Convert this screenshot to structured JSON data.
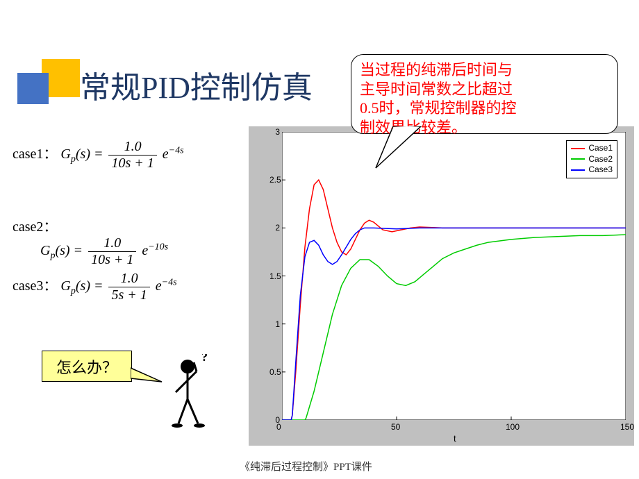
{
  "title": "常规PID控制仿真",
  "callout": {
    "line1": "当过程的纯滞后时间与",
    "line2": "主导时间常数之比超过",
    "line3": "0.5时，常规控制器的控",
    "line4": "制效果比较差。",
    "border_color": "#000000",
    "text_color": "#ff0000",
    "bg_color": "#ffffff"
  },
  "cases": {
    "case1": {
      "label": "case1：",
      "gp": "G",
      "sub": "p",
      "arg": "(s) =",
      "num": "1.0",
      "den": "10s + 1",
      "exp": "e",
      "exppow": "−4s"
    },
    "case2": {
      "label": "case2：",
      "gp": "G",
      "sub": "p",
      "arg": "(s) =",
      "num": "1.0",
      "den": "10s + 1",
      "exp": "e",
      "exppow": "−10s"
    },
    "case3": {
      "label": "case3：",
      "gp": "G",
      "sub": "p",
      "arg": "(s) =",
      "num": "1.0",
      "den": "5s + 1",
      "exp": "e",
      "exppow": "−4s"
    }
  },
  "question": "怎么办？",
  "chart": {
    "type": "line",
    "bg": "#c0c0c0",
    "plot_bg": "#ffffff",
    "xlabel": "t",
    "xlim": [
      0,
      150
    ],
    "ylim": [
      0,
      3
    ],
    "xticks": [
      0,
      50,
      100,
      150
    ],
    "yticks": [
      0,
      0.5,
      1,
      1.5,
      2,
      2.5,
      3
    ],
    "legend": [
      {
        "label": "Case1",
        "color": "#ff0000"
      },
      {
        "label": "Case2",
        "color": "#00cc00"
      },
      {
        "label": "Case3",
        "color": "#0000ff"
      }
    ],
    "series": {
      "case1": {
        "color": "#ff0000",
        "line_width": 1.5,
        "data": [
          [
            0,
            0
          ],
          [
            4,
            0
          ],
          [
            4.5,
            0.05
          ],
          [
            6,
            0.5
          ],
          [
            8,
            1.2
          ],
          [
            10,
            1.8
          ],
          [
            12,
            2.2
          ],
          [
            14,
            2.45
          ],
          [
            16,
            2.5
          ],
          [
            18,
            2.4
          ],
          [
            20,
            2.2
          ],
          [
            22,
            2.0
          ],
          [
            24,
            1.85
          ],
          [
            26,
            1.75
          ],
          [
            28,
            1.72
          ],
          [
            30,
            1.78
          ],
          [
            32,
            1.88
          ],
          [
            34,
            1.98
          ],
          [
            36,
            2.05
          ],
          [
            38,
            2.08
          ],
          [
            40,
            2.06
          ],
          [
            42,
            2.02
          ],
          [
            44,
            1.98
          ],
          [
            48,
            1.96
          ],
          [
            52,
            1.98
          ],
          [
            56,
            2.0
          ],
          [
            60,
            2.01
          ],
          [
            70,
            2.0
          ],
          [
            80,
            2.0
          ],
          [
            100,
            2.0
          ],
          [
            150,
            2.0
          ]
        ]
      },
      "case2": {
        "color": "#00cc00",
        "line_width": 1.5,
        "data": [
          [
            0,
            0
          ],
          [
            10,
            0
          ],
          [
            10.5,
            0.02
          ],
          [
            14,
            0.3
          ],
          [
            18,
            0.7
          ],
          [
            22,
            1.1
          ],
          [
            26,
            1.4
          ],
          [
            30,
            1.58
          ],
          [
            34,
            1.67
          ],
          [
            38,
            1.67
          ],
          [
            42,
            1.6
          ],
          [
            46,
            1.5
          ],
          [
            50,
            1.42
          ],
          [
            54,
            1.4
          ],
          [
            58,
            1.44
          ],
          [
            62,
            1.52
          ],
          [
            66,
            1.6
          ],
          [
            70,
            1.68
          ],
          [
            75,
            1.74
          ],
          [
            80,
            1.78
          ],
          [
            85,
            1.82
          ],
          [
            90,
            1.85
          ],
          [
            100,
            1.88
          ],
          [
            110,
            1.9
          ],
          [
            120,
            1.91
          ],
          [
            130,
            1.92
          ],
          [
            140,
            1.92
          ],
          [
            150,
            1.93
          ]
        ]
      },
      "case3": {
        "color": "#0000ff",
        "line_width": 1.5,
        "data": [
          [
            0,
            0
          ],
          [
            4,
            0
          ],
          [
            4.5,
            0.05
          ],
          [
            6,
            0.6
          ],
          [
            8,
            1.3
          ],
          [
            10,
            1.7
          ],
          [
            12,
            1.85
          ],
          [
            14,
            1.87
          ],
          [
            16,
            1.82
          ],
          [
            18,
            1.72
          ],
          [
            20,
            1.65
          ],
          [
            22,
            1.62
          ],
          [
            24,
            1.65
          ],
          [
            26,
            1.72
          ],
          [
            28,
            1.8
          ],
          [
            30,
            1.88
          ],
          [
            32,
            1.94
          ],
          [
            34,
            1.98
          ],
          [
            36,
            2.0
          ],
          [
            40,
            2.0
          ],
          [
            50,
            1.99
          ],
          [
            60,
            2.0
          ],
          [
            80,
            2.0
          ],
          [
            100,
            2.0
          ],
          [
            150,
            2.0
          ]
        ]
      }
    }
  },
  "footer": "《纯滞后过程控制》PPT课件",
  "decoration": {
    "yellow": "#ffc000",
    "blue": "#4472c4"
  }
}
